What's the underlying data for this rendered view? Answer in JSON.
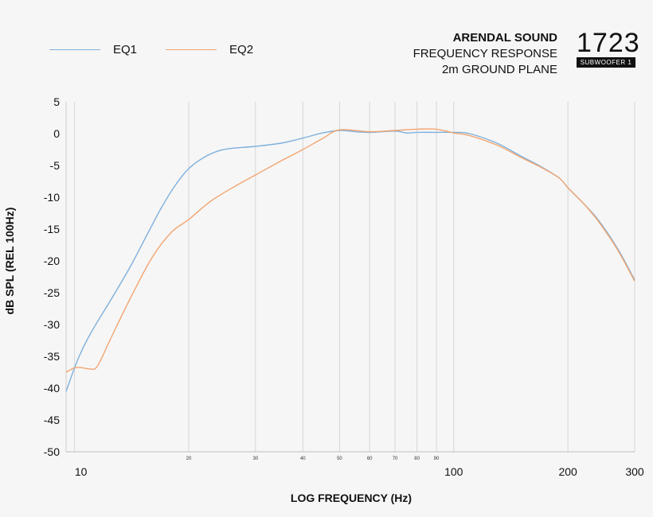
{
  "header": {
    "brand_line1": "ARENDAL SOUND",
    "brand_line2": "FREQUENCY RESPONSE",
    "brand_line3": "2m GROUND PLANE",
    "logo_number": "1723",
    "logo_tag": "SUBWOOFER 1"
  },
  "chart_data": {
    "type": "line",
    "title": "",
    "xlabel": "LOG FREQUENCY (Hz)",
    "ylabel": "dB SPL (REL 100Hz)",
    "xscale": "log",
    "xlim": [
      9.5,
      300
    ],
    "ylim": [
      -50,
      5
    ],
    "grid": true,
    "legend_position": "top-left",
    "y_ticks": [
      5,
      0,
      -5,
      -10,
      -15,
      -20,
      -25,
      -30,
      -35,
      -40,
      -45,
      -50
    ],
    "x_major_ticks": [
      {
        "value": 10,
        "label": "10"
      },
      {
        "value": 100,
        "label": "100"
      },
      {
        "value": 200,
        "label": "200"
      },
      {
        "value": 300,
        "label": "300"
      }
    ],
    "x_minor_ticks": [
      {
        "value": 20,
        "label": "20"
      },
      {
        "value": 30,
        "label": "30"
      },
      {
        "value": 40,
        "label": "40"
      },
      {
        "value": 50,
        "label": "50"
      },
      {
        "value": 60,
        "label": "60"
      },
      {
        "value": 70,
        "label": "70"
      },
      {
        "value": 80,
        "label": "80"
      },
      {
        "value": 90,
        "label": "90"
      }
    ],
    "series": [
      {
        "name": "EQ1",
        "color": "#7fb0dc",
        "points": [
          [
            9.5,
            -40.5
          ],
          [
            10.2,
            -35.5
          ],
          [
            11.0,
            -31.5
          ],
          [
            12.5,
            -26
          ],
          [
            14.0,
            -21
          ],
          [
            15.5,
            -16
          ],
          [
            17.0,
            -11.5
          ],
          [
            18.5,
            -8
          ],
          [
            20.0,
            -5.5
          ],
          [
            22.0,
            -3.7
          ],
          [
            24.0,
            -2.7
          ],
          [
            26.0,
            -2.3
          ],
          [
            30.0,
            -2.0
          ],
          [
            35.0,
            -1.5
          ],
          [
            40.0,
            -0.7
          ],
          [
            45.0,
            0.1
          ],
          [
            50.0,
            0.5
          ],
          [
            55.0,
            0.3
          ],
          [
            60.0,
            0.2
          ],
          [
            70.0,
            0.4
          ],
          [
            75.0,
            0.1
          ],
          [
            80.0,
            0.2
          ],
          [
            90.0,
            0.2
          ],
          [
            100.0,
            0.2
          ],
          [
            110.0,
            0.0
          ],
          [
            130.0,
            -1.5
          ],
          [
            150.0,
            -3.5
          ],
          [
            170.0,
            -5.2
          ],
          [
            190.0,
            -7.0
          ],
          [
            200.0,
            -8.5
          ],
          [
            220.0,
            -11.0
          ],
          [
            240.0,
            -13.5
          ],
          [
            270.0,
            -18.0
          ],
          [
            300.0,
            -23.0
          ]
        ]
      },
      {
        "name": "EQ2",
        "color": "#f2a571",
        "points": [
          [
            9.5,
            -37.5
          ],
          [
            10.0,
            -36.8
          ],
          [
            10.5,
            -36.8
          ],
          [
            11.0,
            -37.0
          ],
          [
            11.5,
            -36.5
          ],
          [
            12.5,
            -32
          ],
          [
            14.0,
            -26
          ],
          [
            16.0,
            -19.5
          ],
          [
            18.0,
            -15.5
          ],
          [
            20.0,
            -13.5
          ],
          [
            23.0,
            -10.5
          ],
          [
            27.0,
            -8.0
          ],
          [
            30.0,
            -6.5
          ],
          [
            35.0,
            -4.3
          ],
          [
            40.0,
            -2.5
          ],
          [
            45.0,
            -0.8
          ],
          [
            50.0,
            0.6
          ],
          [
            60.0,
            0.3
          ],
          [
            70.0,
            0.5
          ],
          [
            80.0,
            0.7
          ],
          [
            90.0,
            0.7
          ],
          [
            100.0,
            0.1
          ],
          [
            110.0,
            -0.3
          ],
          [
            130.0,
            -1.8
          ],
          [
            150.0,
            -3.7
          ],
          [
            170.0,
            -5.3
          ],
          [
            190.0,
            -7.0
          ],
          [
            200.0,
            -8.5
          ],
          [
            220.0,
            -11.0
          ],
          [
            240.0,
            -13.7
          ],
          [
            270.0,
            -18.2
          ],
          [
            300.0,
            -23.2
          ]
        ]
      }
    ]
  }
}
